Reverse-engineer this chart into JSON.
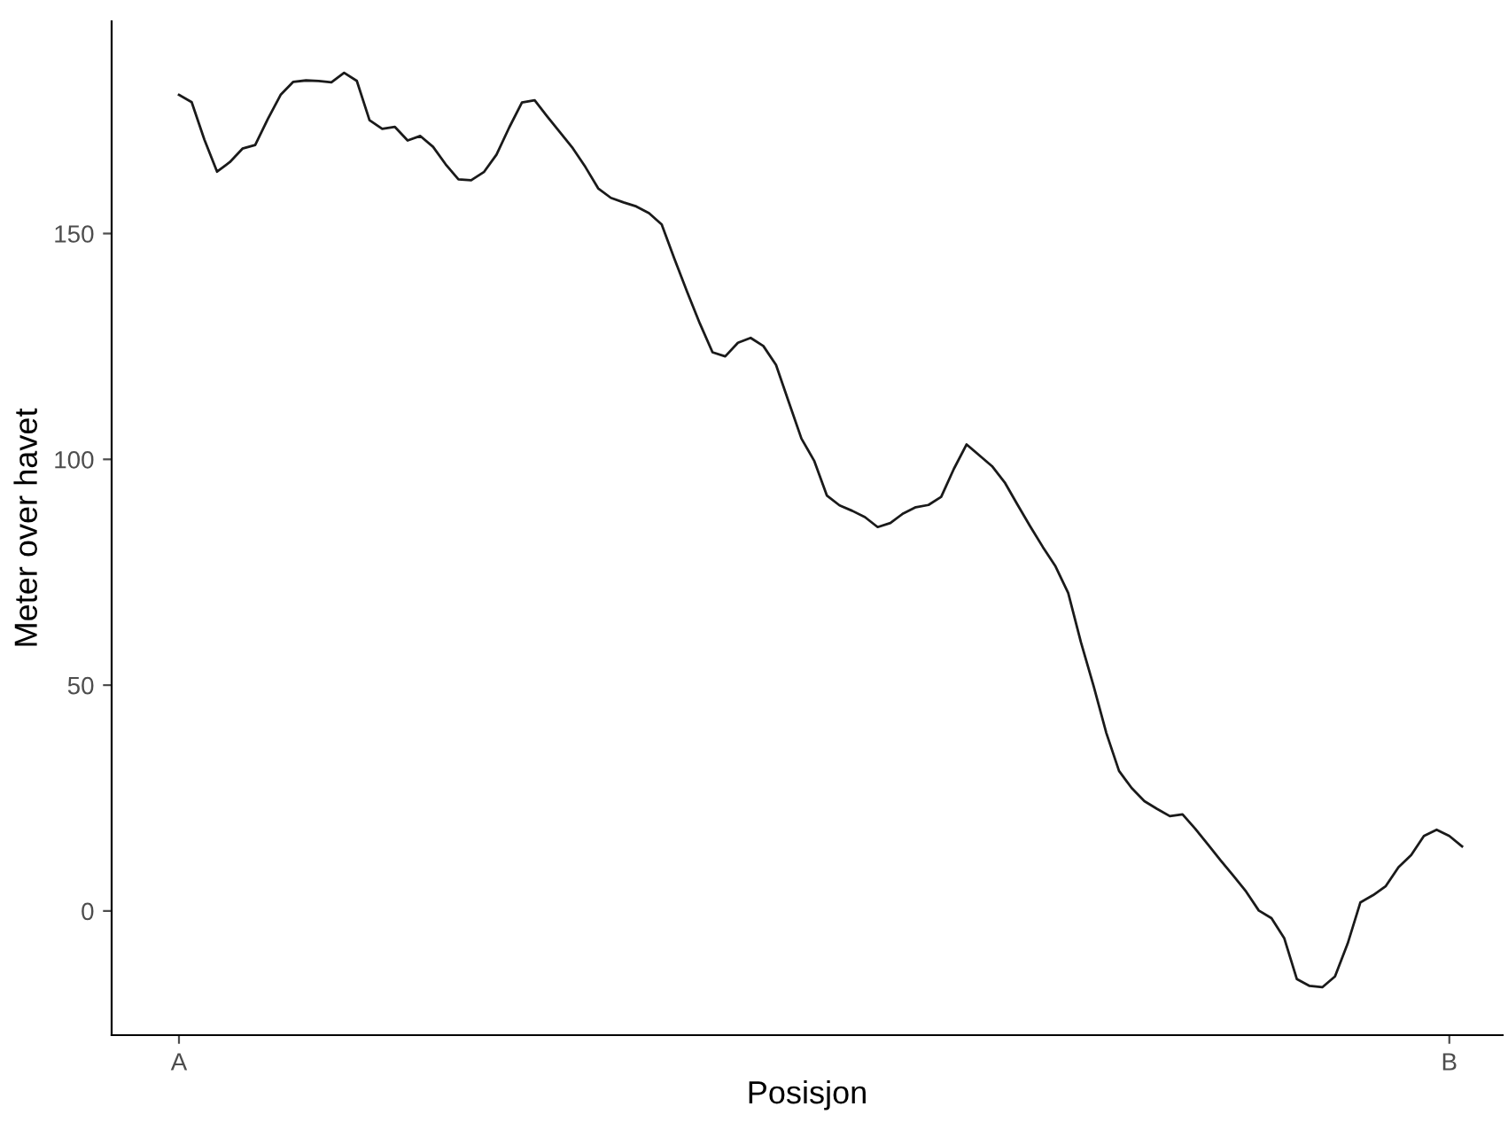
{
  "chart_data": {
    "type": "line",
    "xlabel": "Posisjon",
    "ylabel": "Meter over havet",
    "categories": [
      "A",
      null,
      null,
      null,
      null,
      null,
      null,
      null,
      null,
      null,
      null,
      null,
      null,
      null,
      null,
      null,
      null,
      null,
      null,
      null,
      null,
      null,
      null,
      null,
      null,
      null,
      null,
      null,
      null,
      null,
      null,
      null,
      null,
      null,
      null,
      null,
      null,
      null,
      null,
      null,
      null,
      null,
      null,
      null,
      null,
      null,
      null,
      null,
      null,
      null,
      null,
      null,
      null,
      null,
      null,
      null,
      null,
      null,
      null,
      null,
      null,
      null,
      null,
      null,
      null,
      null,
      null,
      null,
      null,
      null,
      null,
      null,
      null,
      null,
      null,
      null,
      null,
      null,
      null,
      null,
      null,
      null,
      null,
      null,
      null,
      null,
      null,
      null,
      null,
      null,
      null,
      null,
      null,
      null,
      null,
      null,
      null,
      null,
      null,
      null,
      "B",
      null
    ],
    "values": [
      180.7,
      179.1,
      170.8,
      163.7,
      165.8,
      168.8,
      169.6,
      175.4,
      180.7,
      183.6,
      183.9,
      183.8,
      183.5,
      185.6,
      183.8,
      175.1,
      173.2,
      173.6,
      170.6,
      171.6,
      169.2,
      165.3,
      162.0,
      161.8,
      163.6,
      167.5,
      173.5,
      179.0,
      179.5,
      175.9,
      172.4,
      168.9,
      164.7,
      160.0,
      157.9,
      156.9,
      156.0,
      154.5,
      152.0,
      144.4,
      137.1,
      130.1,
      123.7,
      122.8,
      125.8,
      126.9,
      125.1,
      120.9,
      112.7,
      104.6,
      99.7,
      92.0,
      89.8,
      88.6,
      87.2,
      85.0,
      85.9,
      88.0,
      89.4,
      89.9,
      91.7,
      97.9,
      103.3,
      100.9,
      98.5,
      94.9,
      90.0,
      85.2,
      80.6,
      76.3,
      70.4,
      59.5,
      49.8,
      39.4,
      31.0,
      27.2,
      24.3,
      22.6,
      21.0,
      21.4,
      18.2,
      14.7,
      11.2,
      7.8,
      4.3,
      0.1,
      -1.6,
      -6.0,
      -15.1,
      -16.6,
      -16.9,
      -14.5,
      -7.2,
      1.9,
      3.5,
      5.5,
      9.7,
      12.4,
      16.6,
      18.0,
      16.6,
      14.3
    ],
    "color": "#1a1a1a",
    "ylim": [
      -27.5,
      197
    ],
    "yticks": [
      0,
      50,
      100,
      150
    ],
    "grid": false,
    "marker": "none",
    "line_style": "solid"
  }
}
